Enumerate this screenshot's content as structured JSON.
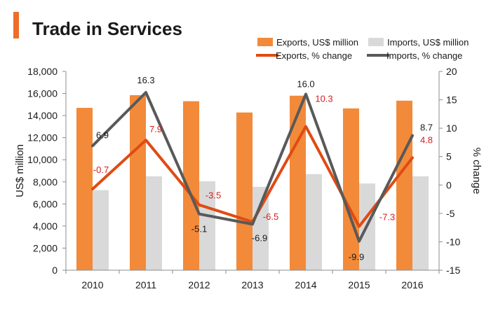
{
  "title": "Trade in Services",
  "colors": {
    "accent": "#ee6d2a",
    "exports_bar": "#f28a3a",
    "imports_bar": "#d9d9d9",
    "exports_line": "#e04b12",
    "imports_line": "#595959",
    "exports_label": "#d21f1f",
    "imports_label": "#1a1a1a"
  },
  "chart_data": {
    "type": "bar",
    "title": "Trade in Services",
    "categories": [
      "2010",
      "2011",
      "2012",
      "2013",
      "2014",
      "2015",
      "2016"
    ],
    "ylabel": "US$ million",
    "y2label": "% change",
    "ylim": [
      0,
      18000
    ],
    "y2lim": [
      -15,
      20
    ],
    "yticks": [
      "0",
      "2,000",
      "4,000",
      "6,000",
      "8,000",
      "10,000",
      "12,000",
      "14,000",
      "16,000",
      "18,000"
    ],
    "y2ticks": [
      "-15",
      "-10",
      "-5",
      "0",
      "5",
      "10",
      "15",
      "20"
    ],
    "series": [
      {
        "name": "Exports, US$ million",
        "type": "bar",
        "axis": "left",
        "values": [
          14700,
          15850,
          15300,
          14280,
          15800,
          14650,
          15350
        ]
      },
      {
        "name": "Imports, US$ million",
        "type": "bar",
        "axis": "left",
        "values": [
          7250,
          8500,
          8050,
          7550,
          8700,
          7850,
          8500
        ]
      },
      {
        "name": "Exports, % change",
        "type": "line",
        "axis": "right",
        "values": [
          -0.7,
          7.9,
          -3.5,
          -6.5,
          10.3,
          -7.3,
          4.8
        ],
        "labels": [
          "-0.7",
          "7.9",
          "-3.5",
          "-6.5",
          "10.3",
          "-7.3",
          "4.8"
        ]
      },
      {
        "name": "Imports, % change",
        "type": "line",
        "axis": "right",
        "values": [
          6.9,
          16.3,
          -5.1,
          -6.9,
          16.0,
          -9.9,
          8.7
        ],
        "labels": [
          "6.9",
          "16.3",
          "-5.1",
          "-6.9",
          "16.0",
          "-9.9",
          "8.7"
        ]
      }
    ],
    "legend_position": "top-right",
    "grid": false
  }
}
